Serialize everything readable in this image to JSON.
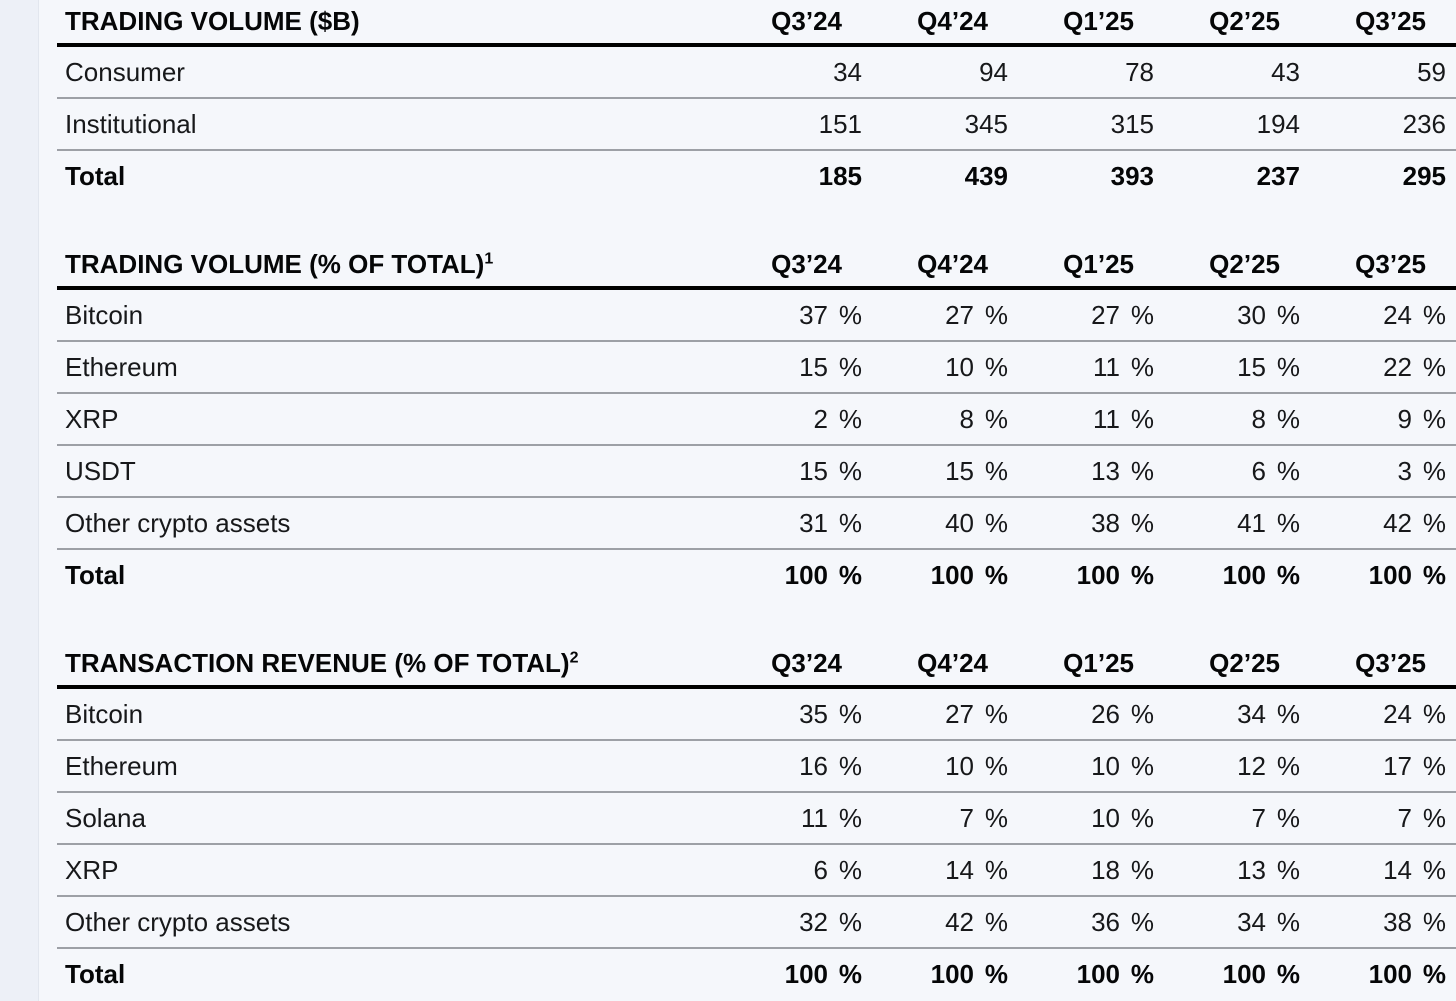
{
  "page": {
    "background": "#f5f7fb",
    "left_strip_color": "#edf0f7",
    "row_line_color": "#9da0a6",
    "header_rule_color": "#000000"
  },
  "quarters": [
    "Q3’24",
    "Q4’24",
    "Q1’25",
    "Q2’25",
    "Q3’25"
  ],
  "tables": [
    {
      "title": "TRADING VOLUME ($B)",
      "superscript": "",
      "unit": "",
      "rows": [
        {
          "label": "Consumer",
          "values": [
            "34",
            "94",
            "78",
            "43",
            "59"
          ],
          "bold": false
        },
        {
          "label": "Institutional",
          "values": [
            "151",
            "345",
            "315",
            "194",
            "236"
          ],
          "bold": false
        },
        {
          "label": "Total",
          "values": [
            "185",
            "439",
            "393",
            "237",
            "295"
          ],
          "bold": true
        }
      ]
    },
    {
      "title": "TRADING VOLUME (% OF TOTAL)",
      "superscript": "1",
      "unit": "%",
      "rows": [
        {
          "label": "Bitcoin",
          "values": [
            "37",
            "27",
            "27",
            "30",
            "24"
          ],
          "bold": false
        },
        {
          "label": "Ethereum",
          "values": [
            "15",
            "10",
            "11",
            "15",
            "22"
          ],
          "bold": false
        },
        {
          "label": "XRP",
          "values": [
            "2",
            "8",
            "11",
            "8",
            "9"
          ],
          "bold": false
        },
        {
          "label": "USDT",
          "values": [
            "15",
            "15",
            "13",
            "6",
            "3"
          ],
          "bold": false
        },
        {
          "label": "Other crypto assets",
          "values": [
            "31",
            "40",
            "38",
            "41",
            "42"
          ],
          "bold": false
        },
        {
          "label": "Total",
          "values": [
            "100",
            "100",
            "100",
            "100",
            "100"
          ],
          "bold": true
        }
      ]
    },
    {
      "title": "TRANSACTION REVENUE (% OF TOTAL)",
      "superscript": "2",
      "unit": "%",
      "rows": [
        {
          "label": "Bitcoin",
          "values": [
            "35",
            "27",
            "26",
            "34",
            "24"
          ],
          "bold": false
        },
        {
          "label": "Ethereum",
          "values": [
            "16",
            "10",
            "10",
            "12",
            "17"
          ],
          "bold": false
        },
        {
          "label": "Solana",
          "values": [
            "11",
            "7",
            "10",
            "7",
            "7"
          ],
          "bold": false
        },
        {
          "label": "XRP",
          "values": [
            "6",
            "14",
            "18",
            "13",
            "14"
          ],
          "bold": false
        },
        {
          "label": "Other crypto assets",
          "values": [
            "32",
            "42",
            "36",
            "34",
            "38"
          ],
          "bold": false
        },
        {
          "label": "Total",
          "values": [
            "100",
            "100",
            "100",
            "100",
            "100"
          ],
          "bold": true
        }
      ]
    }
  ]
}
